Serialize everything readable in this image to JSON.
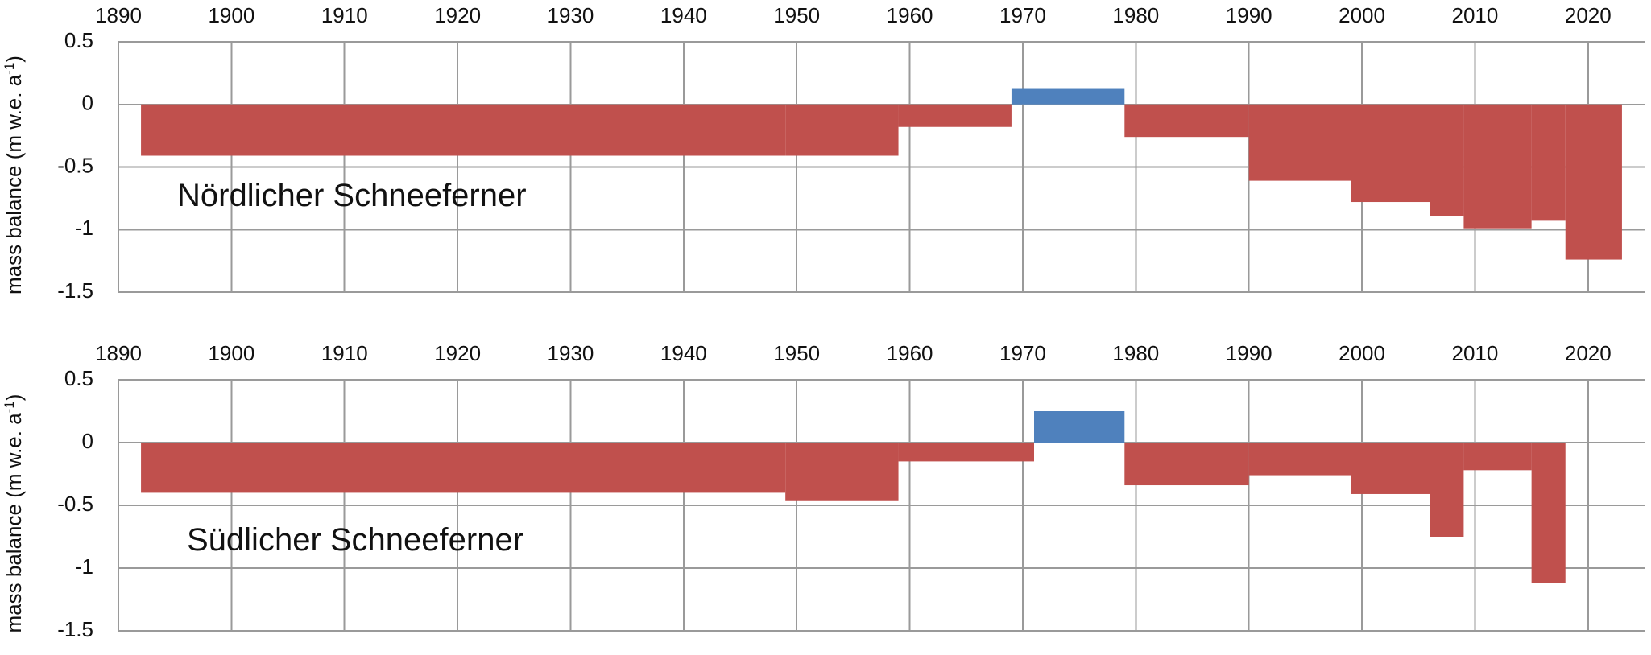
{
  "chart_data": [
    {
      "type": "bar",
      "title": "Nördlicher Schneeferner",
      "xlabel": "",
      "ylabel_main": "mass balance (m w.e. a",
      "ylabel_sup": "-1",
      "ylabel_end": ")",
      "xlim": [
        1890,
        2025
      ],
      "ylim": [
        -1.5,
        0.5
      ],
      "grid": true,
      "x_ticks": [
        1890,
        1900,
        1910,
        1920,
        1930,
        1940,
        1950,
        1960,
        1970,
        1980,
        1990,
        2000,
        2010,
        2020
      ],
      "x_tick_labels": [
        "1890",
        "1900",
        "1910",
        "1920",
        "1930",
        "1940",
        "1950",
        "1960",
        "1970",
        "1980",
        "1990",
        "2000",
        "2010",
        "2020"
      ],
      "y_ticks": [
        0.5,
        0,
        -0.5,
        -1,
        -1.5
      ],
      "y_tick_labels": [
        "0.5",
        "0",
        "-0.5",
        "-1",
        "-1.5"
      ],
      "colors": {
        "negative": "#C0504D",
        "positive": "#4F81BD"
      },
      "periods": [
        {
          "start": 1892,
          "end": 1949,
          "value": -0.41
        },
        {
          "start": 1949,
          "end": 1959,
          "value": -0.41
        },
        {
          "start": 1959,
          "end": 1969,
          "value": -0.18
        },
        {
          "start": 1969,
          "end": 1979,
          "value": 0.13
        },
        {
          "start": 1979,
          "end": 1990,
          "value": -0.26
        },
        {
          "start": 1990,
          "end": 1999,
          "value": -0.61
        },
        {
          "start": 1999,
          "end": 2006,
          "value": -0.78
        },
        {
          "start": 2006,
          "end": 2009,
          "value": -0.89
        },
        {
          "start": 2009,
          "end": 2015,
          "value": -0.99
        },
        {
          "start": 2015,
          "end": 2018,
          "value": -0.93
        },
        {
          "start": 2018,
          "end": 2023,
          "value": -1.24
        }
      ]
    },
    {
      "type": "bar",
      "title": "Südlicher Schneeferner",
      "xlabel": "",
      "ylabel_main": "mass balance (m w.e. a",
      "ylabel_sup": "-1",
      "ylabel_end": ")",
      "xlim": [
        1890,
        2025
      ],
      "ylim": [
        -1.5,
        0.5
      ],
      "grid": true,
      "x_ticks": [
        1890,
        1900,
        1910,
        1920,
        1930,
        1940,
        1950,
        1960,
        1970,
        1980,
        1990,
        2000,
        2010,
        2020
      ],
      "x_tick_labels": [
        "1890",
        "1900",
        "1910",
        "1920",
        "1930",
        "1940",
        "1950",
        "1960",
        "1970",
        "1980",
        "1990",
        "2000",
        "2010",
        "2020"
      ],
      "y_ticks": [
        0.5,
        0,
        -0.5,
        -1,
        -1.5
      ],
      "y_tick_labels": [
        "0.5",
        "0",
        "-0.5",
        "-1",
        "-1.5"
      ],
      "colors": {
        "negative": "#C0504D",
        "positive": "#4F81BD"
      },
      "periods": [
        {
          "start": 1892,
          "end": 1949,
          "value": -0.4
        },
        {
          "start": 1949,
          "end": 1959,
          "value": -0.46
        },
        {
          "start": 1959,
          "end": 1971,
          "value": -0.15
        },
        {
          "start": 1971,
          "end": 1979,
          "value": 0.25
        },
        {
          "start": 1979,
          "end": 1990,
          "value": -0.34
        },
        {
          "start": 1990,
          "end": 1999,
          "value": -0.26
        },
        {
          "start": 1999,
          "end": 2006,
          "value": -0.41
        },
        {
          "start": 2006,
          "end": 2009,
          "value": -0.75
        },
        {
          "start": 2009,
          "end": 2015,
          "value": -0.22
        },
        {
          "start": 2015,
          "end": 2018,
          "value": -1.12
        }
      ]
    }
  ]
}
